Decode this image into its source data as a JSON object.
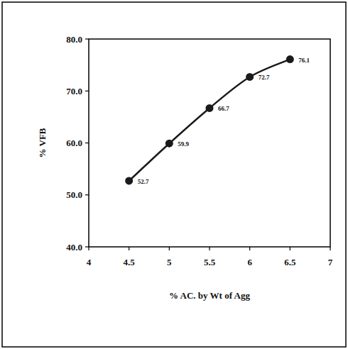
{
  "chart_data": {
    "type": "line",
    "x_label": "% AC. by Wt of Agg",
    "y_label": "% VFB",
    "x": [
      4.5,
      5,
      5.5,
      6,
      6.5
    ],
    "values": [
      52.7,
      59.9,
      66.7,
      72.7,
      76.1
    ],
    "color": "#1a1a1a",
    "marker": "circle",
    "line_style": "solid",
    "data_labels": true,
    "grid": false,
    "xlim": [
      4,
      7
    ],
    "xticks": [
      4,
      4.5,
      5,
      5.5,
      6,
      6.5,
      7
    ],
    "ylim": [
      40,
      80
    ],
    "yticks": [
      {
        "value": 40,
        "label": "40.0"
      },
      {
        "value": 50,
        "label": "50.0"
      },
      {
        "value": 60,
        "label": "60.0"
      },
      {
        "value": 70,
        "label": "70.0"
      },
      {
        "value": 80,
        "label": "80.0"
      }
    ]
  }
}
